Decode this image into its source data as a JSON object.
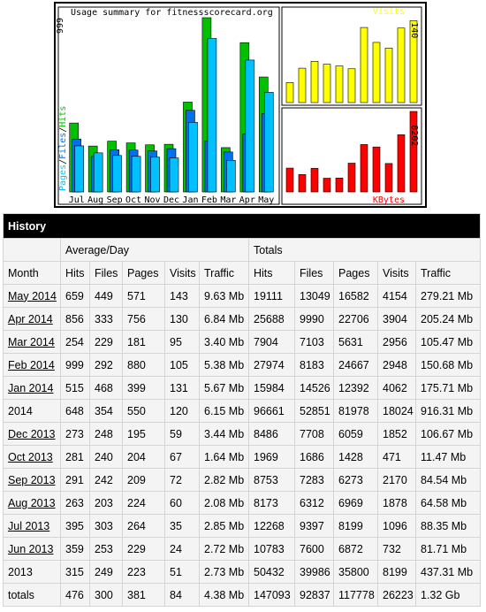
{
  "chart_data": [
    {
      "type": "bar",
      "title": "Usage summary for fitnessscorecard.org",
      "categories": [
        "Jul",
        "Aug",
        "Sep",
        "Oct",
        "Nov",
        "Dec",
        "Jan",
        "Feb",
        "Mar",
        "Apr",
        "May"
      ],
      "series": [
        {
          "name": "Hits",
          "color": "#00c000",
          "values": [
            395,
            263,
            291,
            281,
            270,
            273,
            515,
            999,
            254,
            856,
            659
          ]
        },
        {
          "name": "Files",
          "color": "#0070f0",
          "values": [
            303,
            203,
            242,
            240,
            235,
            248,
            468,
            292,
            229,
            333,
            449
          ]
        },
        {
          "name": "Pages",
          "color": "#00c0ff",
          "values": [
            264,
            224,
            209,
            204,
            200,
            195,
            399,
            880,
            181,
            756,
            571
          ]
        }
      ],
      "legend_separator": "/",
      "ylim": [
        0,
        999
      ],
      "yticks": [
        999
      ]
    },
    {
      "type": "bar",
      "categories": [
        "Jul",
        "Aug",
        "Sep",
        "Oct",
        "Nov",
        "Dec",
        "Jan",
        "Feb",
        "Mar",
        "Apr",
        "May"
      ],
      "series": [
        {
          "name": "Visits",
          "color": "#ffff00",
          "values": [
            35,
            60,
            72,
            67,
            64,
            59,
            131,
            105,
            95,
            130,
            143
          ]
        }
      ],
      "ylim": [
        0,
        145
      ],
      "yticks": [
        140
      ]
    },
    {
      "type": "bar",
      "categories": [
        "Jul",
        "Aug",
        "Sep",
        "Oct",
        "Nov",
        "Dec",
        "Jan",
        "Feb",
        "Mar",
        "Apr",
        "May"
      ],
      "series": [
        {
          "name": "KBytes",
          "color": "#ff0000",
          "values": [
            2918,
            2130,
            2888,
            1679,
            1700,
            3523,
            5806,
            5509,
            3482,
            7004,
            9861
          ]
        }
      ],
      "ylim": [
        0,
        9861
      ],
      "yticks": [
        8202
      ]
    }
  ],
  "table": {
    "title": "History",
    "groups": [
      "Average/Day",
      "Totals"
    ],
    "columns": [
      "Month",
      "Hits",
      "Files",
      "Pages",
      "Visits",
      "Traffic",
      "Hits",
      "Files",
      "Pages",
      "Visits",
      "Traffic"
    ],
    "rows": [
      {
        "link": true,
        "cells": [
          "May 2014",
          659,
          449,
          571,
          143,
          "9.63 Mb",
          19111,
          13049,
          16582,
          4154,
          "279.21 Mb"
        ]
      },
      {
        "link": true,
        "cells": [
          "Apr 2014",
          856,
          333,
          756,
          130,
          "6.84 Mb",
          25688,
          9990,
          22706,
          3904,
          "205.24 Mb"
        ]
      },
      {
        "link": true,
        "cells": [
          "Mar 2014",
          254,
          229,
          181,
          95,
          "3.40 Mb",
          7904,
          7103,
          5631,
          2956,
          "105.47 Mb"
        ]
      },
      {
        "link": true,
        "cells": [
          "Feb 2014",
          999,
          292,
          880,
          105,
          "5.38 Mb",
          27974,
          8183,
          24667,
          2948,
          "150.68 Mb"
        ]
      },
      {
        "link": true,
        "cells": [
          "Jan 2014",
          515,
          468,
          399,
          131,
          "5.67 Mb",
          15984,
          14526,
          12392,
          4062,
          "175.71 Mb"
        ]
      },
      {
        "link": false,
        "cells": [
          "2014",
          648,
          354,
          550,
          120,
          "6.15 Mb",
          96661,
          52851,
          81978,
          18024,
          "916.31 Mb"
        ]
      },
      {
        "link": true,
        "cells": [
          "Dec 2013",
          273,
          248,
          195,
          59,
          "3.44 Mb",
          8486,
          7708,
          6059,
          1852,
          "106.67 Mb"
        ]
      },
      {
        "link": true,
        "cells": [
          "Oct 2013",
          281,
          240,
          204,
          67,
          "1.64 Mb",
          1969,
          1686,
          1428,
          471,
          "11.47 Mb"
        ]
      },
      {
        "link": true,
        "cells": [
          "Sep 2013",
          291,
          242,
          209,
          72,
          "2.82 Mb",
          8753,
          7283,
          6273,
          2170,
          "84.54 Mb"
        ]
      },
      {
        "link": true,
        "cells": [
          "Aug 2013",
          263,
          203,
          224,
          60,
          "2.08 Mb",
          8173,
          6312,
          6969,
          1878,
          "64.58 Mb"
        ]
      },
      {
        "link": true,
        "cells": [
          "Jul 2013",
          395,
          303,
          264,
          35,
          "2.85 Mb",
          12268,
          9397,
          8199,
          1096,
          "88.35 Mb"
        ]
      },
      {
        "link": true,
        "cells": [
          "Jun 2013",
          359,
          253,
          229,
          24,
          "2.72 Mb",
          10783,
          7600,
          6872,
          732,
          "81.71 Mb"
        ]
      },
      {
        "link": false,
        "cells": [
          "2013",
          315,
          249,
          223,
          51,
          "2.73 Mb",
          50432,
          39986,
          35800,
          8199,
          "437.31 Mb"
        ]
      },
      {
        "link": false,
        "cells": [
          "totals",
          476,
          300,
          381,
          84,
          "4.38 Mb",
          147093,
          92837,
          117778,
          26223,
          "1.32 Gb"
        ]
      }
    ]
  }
}
